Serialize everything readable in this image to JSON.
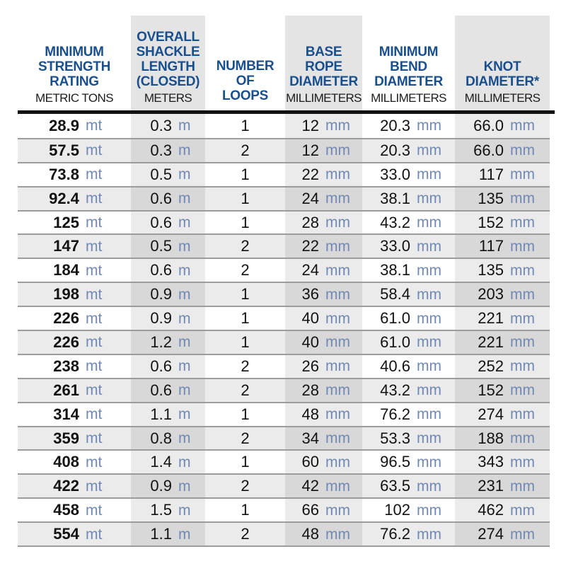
{
  "table": {
    "columns": [
      {
        "title": "MINIMUM\nSTRENGTH\nRATING",
        "unit_label": "METRIC TONS"
      },
      {
        "title": "OVERALL\nSHACKLE\nLENGTH\n(CLOSED)",
        "unit_label": "METERS"
      },
      {
        "title": "NUMBER\nOF\nLOOPS",
        "unit_label": ""
      },
      {
        "title": "BASE\nROPE\nDIAMETER",
        "unit_label": "MILLIMETERS"
      },
      {
        "title": "MINIMUM\nBEND\nDIAMETER",
        "unit_label": "MILLIMETERS"
      },
      {
        "title": "KNOT\nDIAMETER*",
        "unit_label": "MILLIMETERS"
      }
    ],
    "units": {
      "strength": "mt",
      "length": "m",
      "diameter": "mm"
    },
    "rows": [
      {
        "strength": "28.9",
        "shackle_length": "0.3",
        "loops": "1",
        "rope_diameter": "12",
        "bend_diameter": "20.3",
        "knot_diameter": "66.0"
      },
      {
        "strength": "57.5",
        "shackle_length": "0.3",
        "loops": "2",
        "rope_diameter": "12",
        "bend_diameter": "20.3",
        "knot_diameter": "66.0"
      },
      {
        "strength": "73.8",
        "shackle_length": "0.5",
        "loops": "1",
        "rope_diameter": "22",
        "bend_diameter": "33.0",
        "knot_diameter": "117"
      },
      {
        "strength": "92.4",
        "shackle_length": "0.6",
        "loops": "1",
        "rope_diameter": "24",
        "bend_diameter": "38.1",
        "knot_diameter": "135"
      },
      {
        "strength": "125",
        "shackle_length": "0.6",
        "loops": "1",
        "rope_diameter": "28",
        "bend_diameter": "43.2",
        "knot_diameter": "152"
      },
      {
        "strength": "147",
        "shackle_length": "0.5",
        "loops": "2",
        "rope_diameter": "22",
        "bend_diameter": "33.0",
        "knot_diameter": "117"
      },
      {
        "strength": "184",
        "shackle_length": "0.6",
        "loops": "2",
        "rope_diameter": "24",
        "bend_diameter": "38.1",
        "knot_diameter": "135"
      },
      {
        "strength": "198",
        "shackle_length": "0.9",
        "loops": "1",
        "rope_diameter": "36",
        "bend_diameter": "58.4",
        "knot_diameter": "203"
      },
      {
        "strength": "226",
        "shackle_length": "0.9",
        "loops": "1",
        "rope_diameter": "40",
        "bend_diameter": "61.0",
        "knot_diameter": "221"
      },
      {
        "strength": "226",
        "shackle_length": "1.2",
        "loops": "1",
        "rope_diameter": "40",
        "bend_diameter": "61.0",
        "knot_diameter": "221"
      },
      {
        "strength": "238",
        "shackle_length": "0.6",
        "loops": "2",
        "rope_diameter": "26",
        "bend_diameter": "40.6",
        "knot_diameter": "252"
      },
      {
        "strength": "261",
        "shackle_length": "0.6",
        "loops": "2",
        "rope_diameter": "28",
        "bend_diameter": "43.2",
        "knot_diameter": "152"
      },
      {
        "strength": "314",
        "shackle_length": "1.1",
        "loops": "1",
        "rope_diameter": "48",
        "bend_diameter": "76.2",
        "knot_diameter": "274"
      },
      {
        "strength": "359",
        "shackle_length": "0.8",
        "loops": "2",
        "rope_diameter": "34",
        "bend_diameter": "53.3",
        "knot_diameter": "188"
      },
      {
        "strength": "408",
        "shackle_length": "1.4",
        "loops": "1",
        "rope_diameter": "60",
        "bend_diameter": "96.5",
        "knot_diameter": "343"
      },
      {
        "strength": "422",
        "shackle_length": "0.9",
        "loops": "2",
        "rope_diameter": "42",
        "bend_diameter": "63.5",
        "knot_diameter": "231"
      },
      {
        "strength": "458",
        "shackle_length": "1.5",
        "loops": "1",
        "rope_diameter": "66",
        "bend_diameter": "102",
        "knot_diameter": "462"
      },
      {
        "strength": "554",
        "shackle_length": "1.1",
        "loops": "2",
        "rope_diameter": "48",
        "bend_diameter": "76.2",
        "knot_diameter": "274"
      }
    ]
  },
  "colors": {
    "header_blue": "#1a4f8e",
    "unit_blue": "#7289b4",
    "text_dark": "#121212",
    "row_stripe": "#ebebeb",
    "header_band": "#e4e4e4",
    "separator": "#9c9c9c",
    "header_rule": "#121212"
  }
}
